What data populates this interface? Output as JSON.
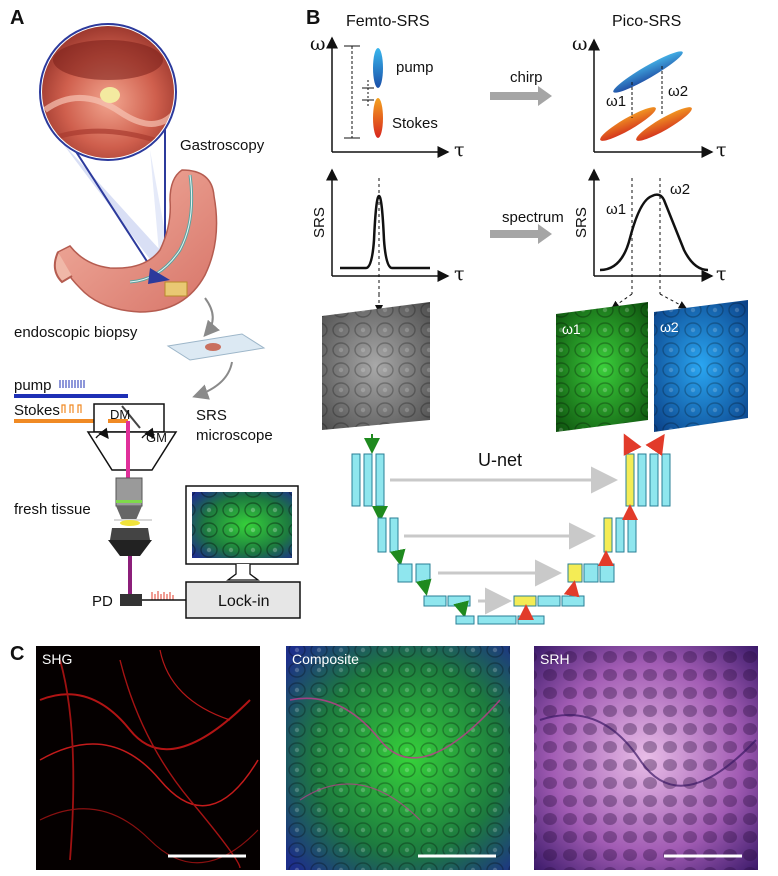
{
  "panels": {
    "A": {
      "letter": "A",
      "gastroscopy": "Gastroscopy",
      "biopsy": "endoscopic biopsy",
      "pump": "pump",
      "stokes": "Stokes",
      "dm": "DM",
      "gm": "GM",
      "srs_microscope_1": "SRS",
      "srs_microscope_2": "microscope",
      "fresh_tissue": "fresh tissue",
      "pd": "PD",
      "lockin": "Lock-in"
    },
    "B": {
      "letter": "B",
      "femto_title": "Femto-SRS",
      "pico_title": "Pico-SRS",
      "omega": "ω",
      "tau": "τ",
      "pump": "pump",
      "stokes": "Stokes",
      "chirp": "chirp",
      "spectrum": "spectrum",
      "srs": "SRS",
      "omega1": "ω1",
      "omega2": "ω2",
      "unet": "U-net"
    },
    "C": {
      "letter": "C",
      "shg": "SHG",
      "composite": "Composite",
      "srh": "SRH"
    }
  },
  "colors": {
    "pump_beam": "#1d2fb5",
    "stokes_beam": "#f08a24",
    "combined_beam": "#e0309a",
    "detected_beam": "#8c1f7a",
    "unet_cyan": "#8fe6ee",
    "unet_yellow": "#f4ec55",
    "arrow_green": "#1f8a1f",
    "arrow_red": "#e23b2a",
    "skip_gray": "#c9c9c9"
  },
  "icons": [
    "gastroscope-view-icon",
    "stomach-icon",
    "microscope-slide-icon",
    "monitor-icon",
    "objective-lens-icon"
  ]
}
